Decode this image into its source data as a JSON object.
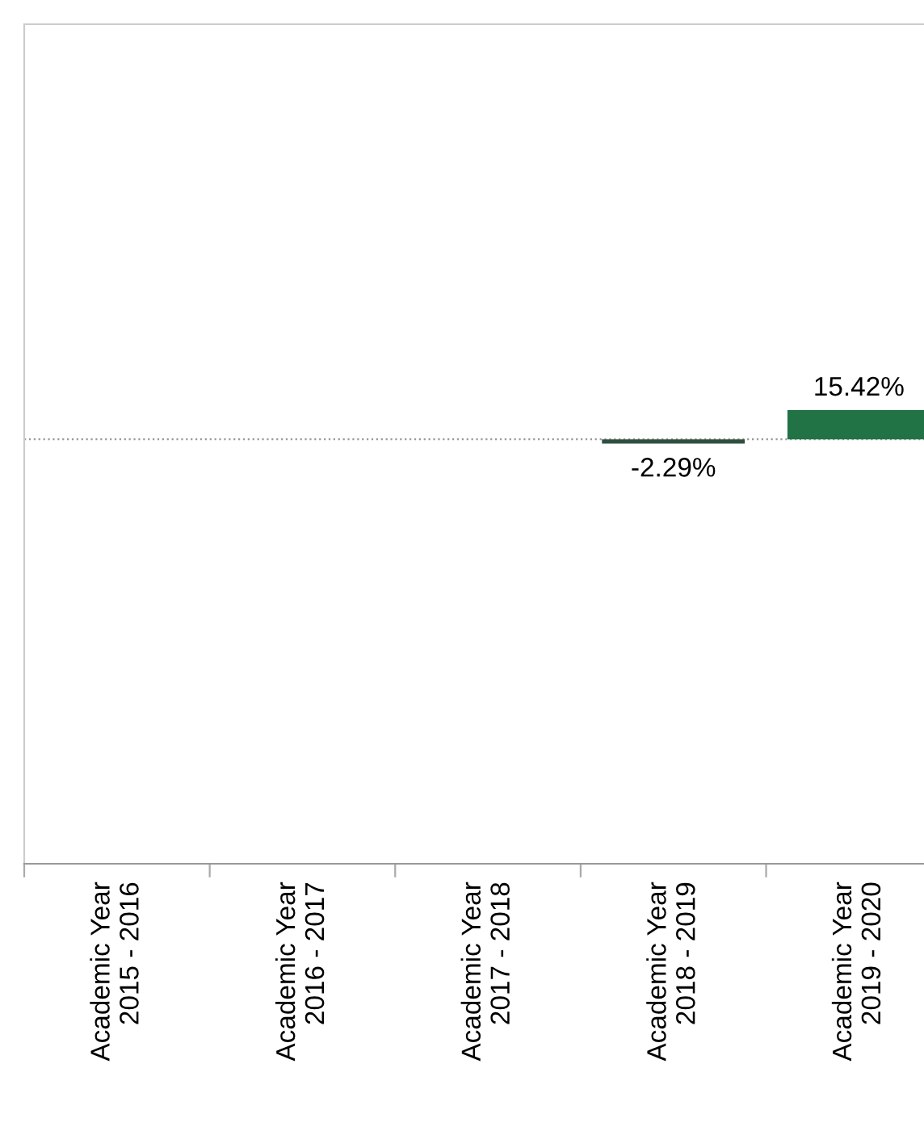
{
  "chart_data": {
    "type": "bar",
    "categories": [
      "Academic Year\n2015 - 2016",
      "Academic Year\n2016 - 2017",
      "Academic Year\n2017 - 2018",
      "Academic Year\n2018 - 2019",
      "Academic Year\n2019 - 2020"
    ],
    "series": [
      {
        "colors": [
          "#217346",
          "#217346",
          "#217346",
          "#2f4f3f",
          "#217346"
        ],
        "values": [
          null,
          null,
          null,
          -2.29,
          15.42
        ],
        "value_labels": [
          null,
          null,
          null,
          "-2.29%",
          "15.42%"
        ]
      }
    ],
    "ylim": [
      -225,
      220
    ],
    "tick_labels": "x",
    "grid": false,
    "ref_lines": [
      {
        "axis": "y",
        "value": 0,
        "color": "#999999",
        "line_style": "dotted"
      }
    ]
  }
}
